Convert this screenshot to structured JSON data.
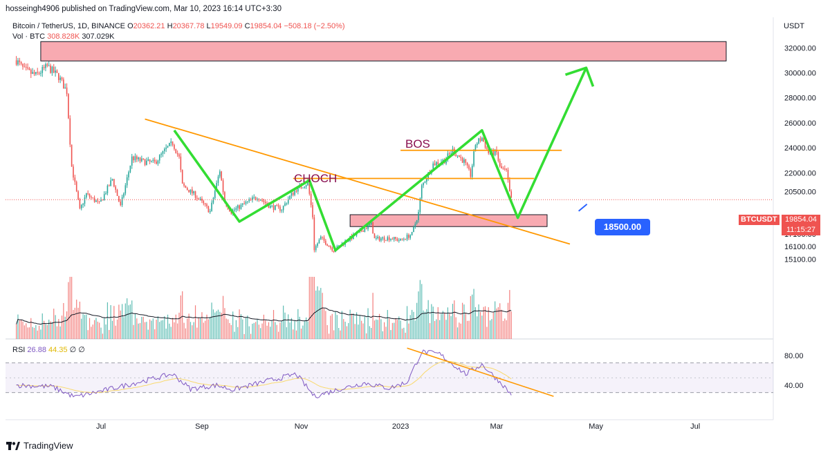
{
  "header": {
    "published": "hosseingh4906 published on TradingView.com, Mar 10, 2023 16:14 UTC+3:30"
  },
  "legend": {
    "symbol": "Bitcoin / TetherUS, 1D, BINANCE",
    "o_label": "O",
    "o": "20362.21",
    "h_label": "H",
    "h": "20367.78",
    "l_label": "L",
    "l": "19549.09",
    "c_label": "C",
    "c": "19854.04",
    "change": "−508.18 (−2.50%)",
    "vol_label": "Vol · BTC",
    "vol_1": "308.828K",
    "vol_2": "307.029K",
    "rsi_label": "RSI",
    "rsi_1": "26.88",
    "rsi_2": "44.35",
    "rsi_3": "∅",
    "rsi_4": "∅"
  },
  "price_axis": {
    "unit": "USDT",
    "symbol_tag": "BTCUSDT",
    "last_price": "19854.04",
    "countdown": "11:15:27"
  },
  "annotations": {
    "bos": "BOS",
    "choch": "CHOCH",
    "target": "18500.00"
  },
  "brand": {
    "name": "TradingView"
  },
  "colors": {
    "up": "#26a69a",
    "down": "#ef5350",
    "zone": "#f7a1a8",
    "trend": "#ff9800",
    "swing": "#33dd33",
    "rsi": "#7e57c2",
    "rsi_ma": "#f9d96d",
    "callout": "#2962ff"
  },
  "chart_data": [
    {
      "type": "candlestick",
      "title": "Bitcoin / TetherUS, 1D, BINANCE",
      "y_unit": "USDT",
      "ylim": [
        14200,
        33500
      ],
      "y_ticks": [
        32000,
        30000,
        28000,
        26000,
        24000,
        22000,
        20500,
        18100,
        17100,
        16100,
        15100
      ],
      "x_ticks": [
        "Jul",
        "Sep",
        "Nov",
        "2023",
        "Mar",
        "May",
        "Jul"
      ],
      "x_tick_dates": [
        "2022-07-01",
        "2022-09-01",
        "2022-11-01",
        "2023-01-01",
        "2023-03-01",
        "2023-05-01",
        "2023-07-01"
      ],
      "date_range": [
        "2022-05-10",
        "2023-03-10"
      ],
      "close_path": [
        [
          "2022-05-10",
          31000
        ],
        [
          "2022-05-15",
          30200
        ],
        [
          "2022-05-22",
          29800
        ],
        [
          "2022-05-29",
          30500
        ],
        [
          "2022-06-05",
          29700
        ],
        [
          "2022-06-10",
          28500
        ],
        [
          "2022-06-13",
          22500
        ],
        [
          "2022-06-18",
          19000
        ],
        [
          "2022-06-22",
          20300
        ],
        [
          "2022-06-30",
          19500
        ],
        [
          "2022-07-08",
          21500
        ],
        [
          "2022-07-13",
          19300
        ],
        [
          "2022-07-20",
          23200
        ],
        [
          "2022-07-27",
          22900
        ],
        [
          "2022-08-03",
          22800
        ],
        [
          "2022-08-10",
          23900
        ],
        [
          "2022-08-14",
          24400
        ],
        [
          "2022-08-18",
          23200
        ],
        [
          "2022-08-20",
          21000
        ],
        [
          "2022-08-28",
          20200
        ],
        [
          "2022-09-06",
          18900
        ],
        [
          "2022-09-12",
          22200
        ],
        [
          "2022-09-15",
          19700
        ],
        [
          "2022-09-19",
          18900
        ],
        [
          "2022-09-27",
          19500
        ],
        [
          "2022-10-05",
          20100
        ],
        [
          "2022-10-13",
          19300
        ],
        [
          "2022-10-20",
          19100
        ],
        [
          "2022-10-25",
          20100
        ],
        [
          "2022-10-29",
          20700
        ],
        [
          "2022-11-05",
          21200
        ],
        [
          "2022-11-08",
          18500
        ],
        [
          "2022-11-09",
          15900
        ],
        [
          "2022-11-13",
          16800
        ],
        [
          "2022-11-21",
          15800
        ],
        [
          "2022-11-28",
          16500
        ],
        [
          "2022-12-05",
          17100
        ],
        [
          "2022-12-14",
          17900
        ],
        [
          "2022-12-16",
          16700
        ],
        [
          "2022-12-25",
          16800
        ],
        [
          "2023-01-01",
          16600
        ],
        [
          "2023-01-08",
          17100
        ],
        [
          "2023-01-12",
          18800
        ],
        [
          "2023-01-14",
          20900
        ],
        [
          "2023-01-21",
          22700
        ],
        [
          "2023-01-28",
          23000
        ],
        [
          "2023-02-02",
          23800
        ],
        [
          "2023-02-09",
          22900
        ],
        [
          "2023-02-13",
          21800
        ],
        [
          "2023-02-16",
          24300
        ],
        [
          "2023-02-20",
          24800
        ],
        [
          "2023-02-24",
          23600
        ],
        [
          "2023-03-01",
          23600
        ],
        [
          "2023-03-03",
          22400
        ],
        [
          "2023-03-07",
          22100
        ],
        [
          "2023-03-09",
          20400
        ],
        [
          "2023-03-10",
          19854
        ]
      ],
      "zones": [
        {
          "from": "2022-05-25",
          "to": "2023-07-20",
          "low": 30950,
          "high": 32500
        },
        {
          "from": "2022-12-01",
          "to": "2023-04-01",
          "low": 17700,
          "high": 18650
        }
      ],
      "trendlines": [
        {
          "from": [
            "2022-07-28",
            26300
          ],
          "to": [
            "2023-04-15",
            16300
          ]
        },
        {
          "from": [
            "2022-10-27",
            21550
          ],
          "to": [
            "2023-03-24",
            21550
          ]
        },
        {
          "from": [
            "2023-01-01",
            23800
          ],
          "to": [
            "2023-04-10",
            23800
          ]
        }
      ],
      "swing_path": [
        [
          "2022-08-15",
          25400
        ],
        [
          "2022-09-24",
          18100
        ],
        [
          "2022-11-06",
          21400
        ],
        [
          "2022-11-22",
          15800
        ],
        [
          "2023-02-20",
          25400
        ],
        [
          "2023-03-14",
          18400
        ],
        [
          "2023-04-25",
          30400
        ]
      ],
      "target": 18500,
      "last": 19854.04
    },
    {
      "type": "bar",
      "title": "Vol · BTC",
      "values_shown": [
        "308.828K",
        "307.029K"
      ]
    },
    {
      "type": "line",
      "title": "RSI",
      "ylim": [
        20,
        90
      ],
      "y_ticks": [
        80,
        40
      ],
      "bands": [
        70,
        50,
        30
      ],
      "series": [
        {
          "name": "RSI",
          "values": [
            26.88
          ]
        },
        {
          "name": "RSI-based MA",
          "values": [
            44.35
          ]
        }
      ],
      "rsi_path": [
        [
          "2022-05-10",
          40
        ],
        [
          "2022-06-01",
          38
        ],
        [
          "2022-06-15",
          24
        ],
        [
          "2022-07-01",
          32
        ],
        [
          "2022-07-20",
          42
        ],
        [
          "2022-08-14",
          55
        ],
        [
          "2022-08-25",
          35
        ],
        [
          "2022-09-10",
          40
        ],
        [
          "2022-09-20",
          34
        ],
        [
          "2022-10-10",
          45
        ],
        [
          "2022-10-29",
          55
        ],
        [
          "2022-11-09",
          25
        ],
        [
          "2022-11-25",
          35
        ],
        [
          "2022-12-10",
          43
        ],
        [
          "2022-12-25",
          36
        ],
        [
          "2023-01-05",
          44
        ],
        [
          "2023-01-14",
          85
        ],
        [
          "2023-01-25",
          82
        ],
        [
          "2023-02-10",
          55
        ],
        [
          "2023-02-20",
          68
        ],
        [
          "2023-03-05",
          40
        ],
        [
          "2023-03-10",
          26.88
        ]
      ],
      "trendline": {
        "from": [
          "2023-01-05",
          90
        ],
        "to": [
          "2023-04-05",
          25
        ]
      }
    }
  ]
}
